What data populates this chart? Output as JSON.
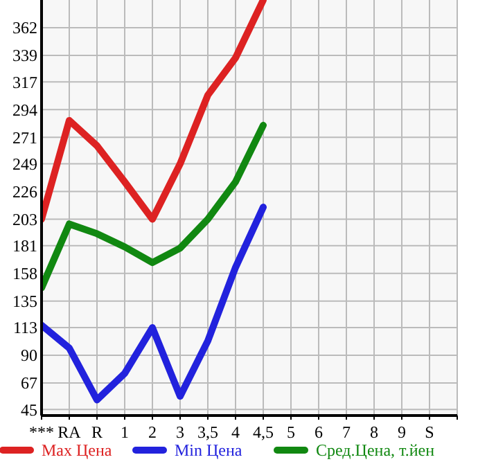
{
  "chart_data": {
    "type": "line",
    "categories": [
      "***",
      "RA",
      "R",
      "1",
      "2",
      "3",
      "3,5",
      "4",
      "4,5",
      "5",
      "6",
      "7",
      "8",
      "9",
      "S",
      null
    ],
    "series": [
      {
        "name": "Max Цена",
        "color": "#dd2222",
        "values": [
          203,
          285,
          264,
          234,
          203,
          249,
          306,
          337,
          385,
          null,
          null,
          null,
          null,
          null,
          null,
          null
        ]
      },
      {
        "name": "Min Цена",
        "color": "#2222dd",
        "values": [
          115,
          96,
          53,
          75,
          113,
          56,
          102,
          163,
          213,
          null,
          null,
          null,
          null,
          null,
          null,
          null
        ]
      },
      {
        "name": "Сред.Цена, т.йен",
        "color": "#118811",
        "values": [
          146,
          199,
          191,
          180,
          167,
          179,
          203,
          234,
          281,
          null,
          null,
          null,
          null,
          null,
          null,
          null
        ]
      }
    ],
    "ylim": [
      40,
      385
    ],
    "yticks": [
      45,
      67,
      90,
      113,
      135,
      158,
      181,
      203,
      226,
      249,
      271,
      294,
      317,
      339,
      362
    ],
    "grid": true,
    "legend": "bottom",
    "line_style": "solid"
  }
}
